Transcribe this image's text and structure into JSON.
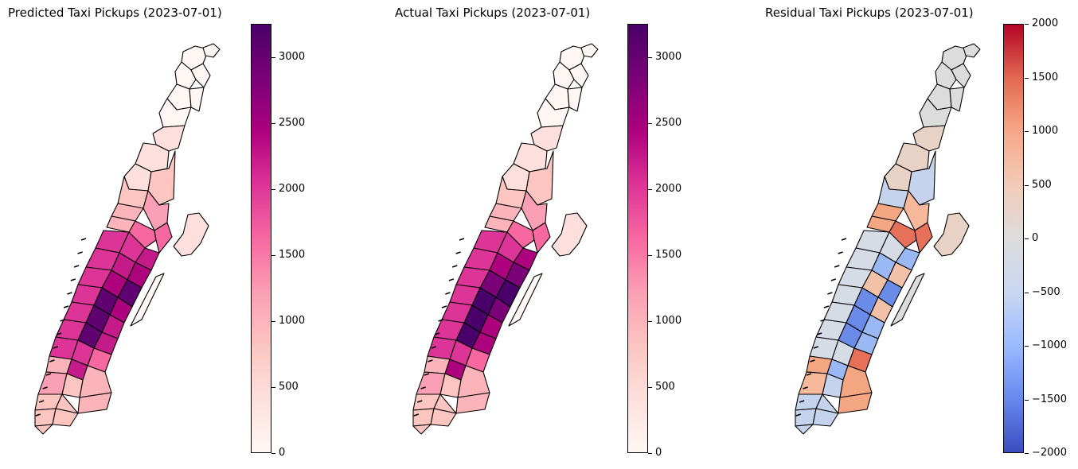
{
  "panels": [
    {
      "title": "Predicted Taxi Pickups (2023-07-01)",
      "colormap": "RdPu",
      "colorbar_range": [
        0,
        3250
      ],
      "colorbar_ticks": [
        "0",
        "500",
        "1000",
        "1500",
        "2000",
        "2500",
        "3000"
      ],
      "colorbar_tick_values": [
        0,
        500,
        1000,
        1500,
        2000,
        2500,
        3000
      ]
    },
    {
      "title": "Actual Taxi Pickups (2023-07-01)",
      "colormap": "RdPu",
      "colorbar_range": [
        0,
        3250
      ],
      "colorbar_ticks": [
        "0",
        "500",
        "1000",
        "1500",
        "2000",
        "2500",
        "3000"
      ],
      "colorbar_tick_values": [
        0,
        500,
        1000,
        1500,
        2000,
        2500,
        3000
      ]
    },
    {
      "title": "Residual Taxi Pickups (2023-07-01)",
      "colormap": "coolwarm",
      "colorbar_range": [
        -2000,
        2000
      ],
      "colorbar_ticks": [
        "−2000",
        "−1500",
        "−1000",
        "−500",
        "0",
        "500",
        "1000",
        "1500",
        "2000"
      ],
      "colorbar_tick_values": [
        -2000,
        -1500,
        -1000,
        -500,
        0,
        500,
        1000,
        1500,
        2000
      ]
    }
  ],
  "colors": {
    "rdpu_gradient": [
      "#fff7f3",
      "#fde0dd",
      "#fcc5c0",
      "#fa9fb5",
      "#f768a1",
      "#dd3497",
      "#ae017e",
      "#7a0177",
      "#49006a"
    ],
    "coolwarm_gradient": [
      "#3b4cc0",
      "#6788ee",
      "#9abbff",
      "#c9d7f0",
      "#dddcdc",
      "#f2cbb7",
      "#f7a889",
      "#e26952",
      "#b40426"
    ]
  }
}
